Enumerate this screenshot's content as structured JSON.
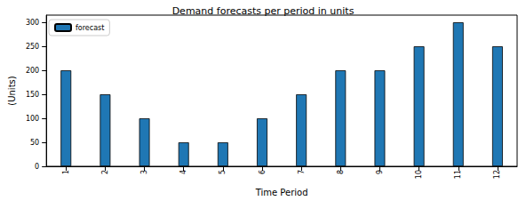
{
  "chart_data": {
    "type": "bar",
    "title": "Demand forecasts per period in units",
    "x_label": "Time Period",
    "y_label": "(Units)",
    "categories": [
      "1",
      "2",
      "3",
      "4",
      "5",
      "6",
      "7",
      "8",
      "9",
      "10",
      "11",
      "12"
    ],
    "series": [
      {
        "name": "forecast",
        "color": "#1f77b4",
        "values": [
          200,
          150,
          100,
          50,
          50,
          100,
          150,
          200,
          200,
          250,
          300,
          250
        ]
      }
    ],
    "ylim": [
      0,
      315
    ],
    "yticks": [
      0,
      50,
      100,
      150,
      200,
      250,
      300
    ],
    "grid": false,
    "legend": "upper left"
  }
}
